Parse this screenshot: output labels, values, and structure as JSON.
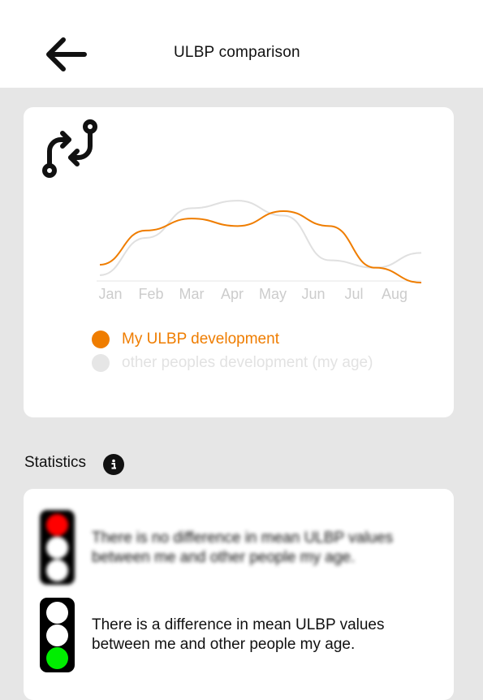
{
  "header": {
    "title": "ULBP comparison",
    "back_icon": "arrow-left-icon"
  },
  "comparison_card": {
    "icon": "compare-arrows-icon",
    "chart_data": {
      "type": "line",
      "categories": [
        "Jan",
        "Feb",
        "Mar",
        "Apr",
        "May",
        "Jun",
        "Jul",
        "Aug"
      ],
      "series": [
        {
          "name": "My ULBP development",
          "color": "#ef7d00",
          "values": [
            12,
            35,
            43,
            38,
            48,
            38,
            10,
            0
          ]
        },
        {
          "name": "other peoples development (my age)",
          "color": "#e0e0e0",
          "values": [
            5,
            30,
            50,
            55,
            45,
            15,
            10,
            20
          ]
        }
      ],
      "grid": false,
      "legend": "bottom"
    },
    "legend": [
      {
        "label": "My ULBP development",
        "color": "#ef7d00"
      },
      {
        "label": "other peoples development (my age)",
        "color": "#e6e6e6"
      }
    ]
  },
  "statistics": {
    "title": "Statistics",
    "info_icon": "info-icon",
    "items": [
      {
        "text": "There is no difference in mean ULBP values between me and other people my age.",
        "lamps": [
          "#ff0000",
          "#ffffff",
          "#ffffff"
        ]
      },
      {
        "text": "There is a difference in mean ULBP values between me and other people my age.",
        "lamps": [
          "#ffffff",
          "#ffffff",
          "#00ee00"
        ]
      }
    ]
  }
}
